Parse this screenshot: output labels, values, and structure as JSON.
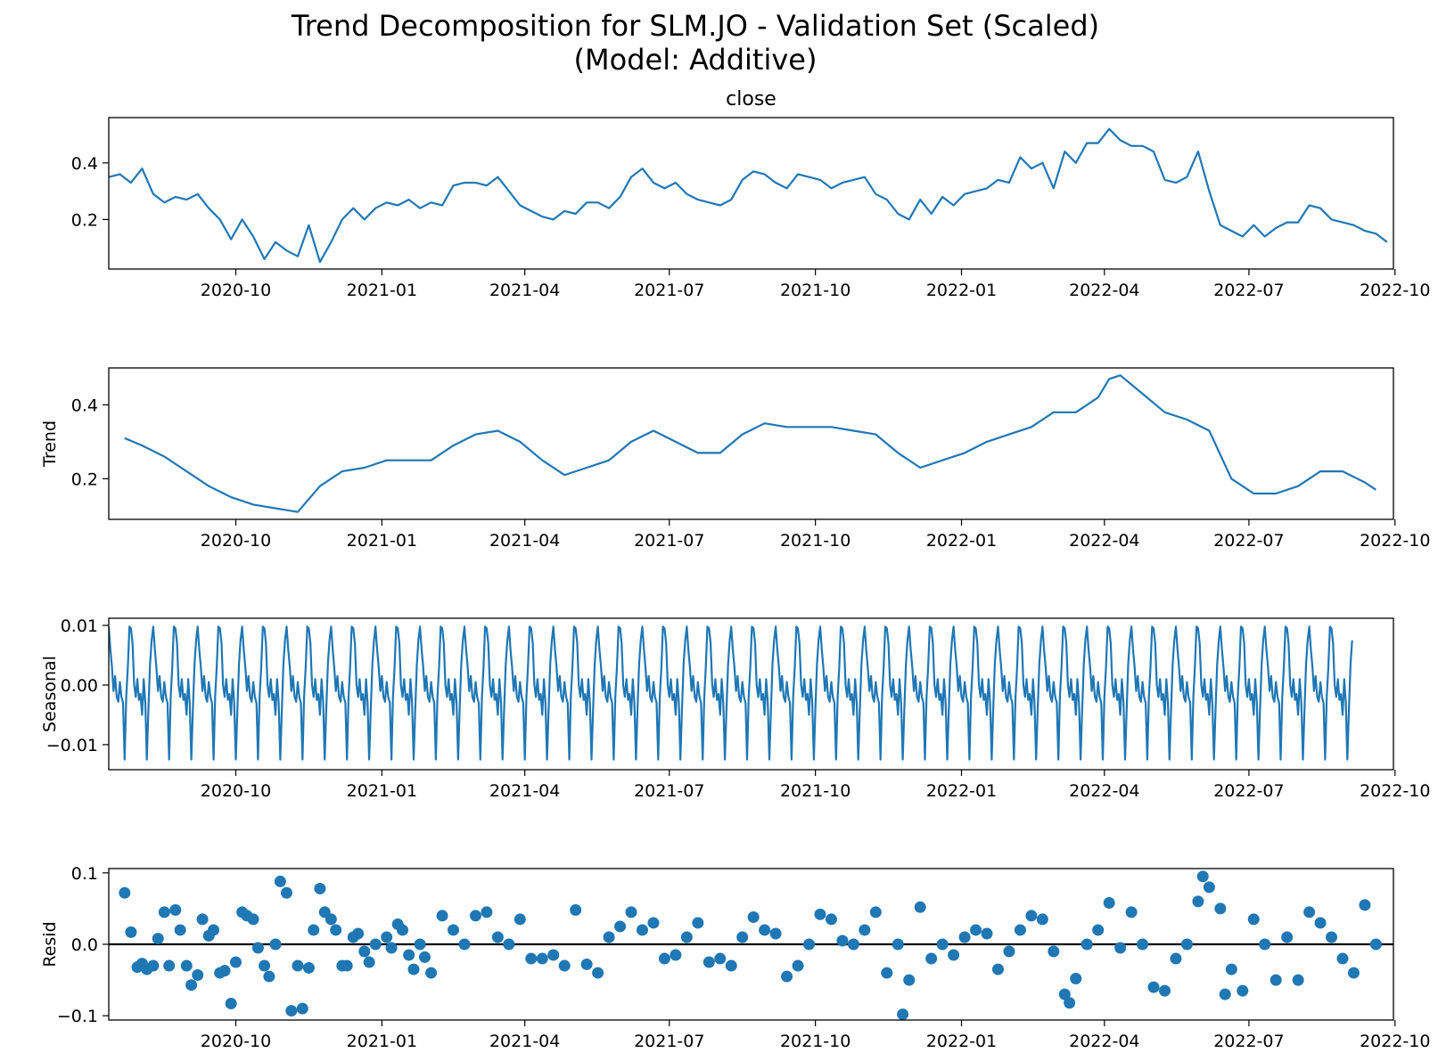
{
  "title_line1": "Trend Decomposition for SLM.JO - Validation Set (Scaled)",
  "title_line2": "(Model: Additive)",
  "x_tick_labels": [
    "2020-10",
    "2021-01",
    "2021-04",
    "2021-07",
    "2021-10",
    "2022-01",
    "2022-04",
    "2022-07",
    "2022-10"
  ],
  "colors": {
    "series": "#1f77b4",
    "zero_line": "#000000",
    "axes": "#000000"
  },
  "chart_data": [
    {
      "type": "line",
      "title": "close",
      "ylabel": "",
      "xlim": [
        "2020-07-13",
        "2022-09-30"
      ],
      "ylim": [
        0.025,
        0.56
      ],
      "yticks": [
        {
          "v": 0.2,
          "label": "0.2"
        },
        {
          "v": 0.4,
          "label": "0.4"
        }
      ],
      "x": [
        "2020-07-13",
        "2020-07-20",
        "2020-07-27",
        "2020-08-03",
        "2020-08-10",
        "2020-08-17",
        "2020-08-24",
        "2020-08-31",
        "2020-09-07",
        "2020-09-14",
        "2020-09-21",
        "2020-09-28",
        "2020-10-05",
        "2020-10-12",
        "2020-10-19",
        "2020-10-26",
        "2020-11-02",
        "2020-11-09",
        "2020-11-16",
        "2020-11-23",
        "2020-11-30",
        "2020-12-07",
        "2020-12-14",
        "2020-12-21",
        "2020-12-28",
        "2021-01-04",
        "2021-01-11",
        "2021-01-18",
        "2021-01-25",
        "2021-02-01",
        "2021-02-08",
        "2021-02-15",
        "2021-02-22",
        "2021-03-01",
        "2021-03-08",
        "2021-03-15",
        "2021-03-22",
        "2021-03-29",
        "2021-04-05",
        "2021-04-12",
        "2021-04-19",
        "2021-04-26",
        "2021-05-03",
        "2021-05-10",
        "2021-05-17",
        "2021-05-24",
        "2021-05-31",
        "2021-06-07",
        "2021-06-14",
        "2021-06-21",
        "2021-06-28",
        "2021-07-05",
        "2021-07-12",
        "2021-07-19",
        "2021-07-26",
        "2021-08-02",
        "2021-08-09",
        "2021-08-16",
        "2021-08-23",
        "2021-08-30",
        "2021-09-06",
        "2021-09-13",
        "2021-09-20",
        "2021-09-27",
        "2021-10-04",
        "2021-10-11",
        "2021-10-18",
        "2021-10-25",
        "2021-11-01",
        "2021-11-08",
        "2021-11-15",
        "2021-11-22",
        "2021-11-29",
        "2021-12-06",
        "2021-12-13",
        "2021-12-20",
        "2021-12-27",
        "2022-01-03",
        "2022-01-10",
        "2022-01-17",
        "2022-01-24",
        "2022-01-31",
        "2022-02-07",
        "2022-02-14",
        "2022-02-21",
        "2022-02-28",
        "2022-03-07",
        "2022-03-14",
        "2022-03-21",
        "2022-03-28",
        "2022-04-04",
        "2022-04-11",
        "2022-04-18",
        "2022-04-25",
        "2022-05-02",
        "2022-05-09",
        "2022-05-16",
        "2022-05-23",
        "2022-05-30",
        "2022-06-06",
        "2022-06-13",
        "2022-06-20",
        "2022-06-27",
        "2022-07-04",
        "2022-07-11",
        "2022-07-18",
        "2022-07-25",
        "2022-08-01",
        "2022-08-08",
        "2022-08-15",
        "2022-08-22",
        "2022-08-29",
        "2022-09-05",
        "2022-09-12",
        "2022-09-19",
        "2022-09-26"
      ],
      "series": [
        {
          "values": [
            0.35,
            0.36,
            0.33,
            0.38,
            0.29,
            0.26,
            0.28,
            0.27,
            0.29,
            0.24,
            0.2,
            0.13,
            0.2,
            0.14,
            0.06,
            0.12,
            0.09,
            0.07,
            0.18,
            0.05,
            0.12,
            0.2,
            0.24,
            0.2,
            0.24,
            0.26,
            0.25,
            0.27,
            0.24,
            0.26,
            0.25,
            0.32,
            0.33,
            0.33,
            0.32,
            0.35,
            0.3,
            0.25,
            0.23,
            0.21,
            0.2,
            0.23,
            0.22,
            0.26,
            0.26,
            0.24,
            0.28,
            0.35,
            0.38,
            0.33,
            0.31,
            0.33,
            0.29,
            0.27,
            0.26,
            0.25,
            0.27,
            0.34,
            0.37,
            0.36,
            0.33,
            0.31,
            0.36,
            0.35,
            0.34,
            0.31,
            0.33,
            0.34,
            0.35,
            0.29,
            0.27,
            0.22,
            0.2,
            0.27,
            0.22,
            0.28,
            0.25,
            0.29,
            0.3,
            0.31,
            0.34,
            0.33,
            0.42,
            0.38,
            0.4,
            0.31,
            0.44,
            0.4,
            0.47,
            0.47,
            0.52,
            0.48,
            0.46,
            0.46,
            0.44,
            0.34,
            0.33,
            0.35,
            0.44,
            0.3,
            0.18,
            0.16,
            0.14,
            0.18,
            0.14,
            0.17,
            0.19,
            0.19,
            0.25,
            0.24,
            0.2,
            0.19,
            0.18,
            0.16,
            0.15,
            0.12
          ]
        }
      ]
    },
    {
      "type": "line",
      "title": "",
      "ylabel": "Trend",
      "xlim": [
        "2020-07-13",
        "2022-09-30"
      ],
      "ylim": [
        0.09,
        0.5
      ],
      "yticks": [
        {
          "v": 0.2,
          "label": "0.2"
        },
        {
          "v": 0.4,
          "label": "0.4"
        }
      ],
      "x": [
        "2020-07-23",
        "2020-08-03",
        "2020-08-17",
        "2020-08-31",
        "2020-09-14",
        "2020-09-28",
        "2020-10-12",
        "2020-10-26",
        "2020-11-09",
        "2020-11-23",
        "2020-12-07",
        "2020-12-21",
        "2021-01-04",
        "2021-01-18",
        "2021-02-01",
        "2021-02-15",
        "2021-03-01",
        "2021-03-15",
        "2021-03-29",
        "2021-04-12",
        "2021-04-26",
        "2021-05-10",
        "2021-05-24",
        "2021-06-07",
        "2021-06-21",
        "2021-07-05",
        "2021-07-19",
        "2021-08-02",
        "2021-08-16",
        "2021-08-30",
        "2021-09-13",
        "2021-09-27",
        "2021-10-11",
        "2021-10-25",
        "2021-11-08",
        "2021-11-22",
        "2021-12-06",
        "2021-12-20",
        "2022-01-03",
        "2022-01-17",
        "2022-01-31",
        "2022-02-14",
        "2022-02-28",
        "2022-03-14",
        "2022-03-28",
        "2022-04-04",
        "2022-04-11",
        "2022-04-25",
        "2022-05-09",
        "2022-05-23",
        "2022-06-06",
        "2022-06-20",
        "2022-07-04",
        "2022-07-18",
        "2022-08-01",
        "2022-08-15",
        "2022-08-29",
        "2022-09-12",
        "2022-09-19"
      ],
      "series": [
        {
          "values": [
            0.31,
            0.29,
            0.26,
            0.22,
            0.18,
            0.15,
            0.13,
            0.12,
            0.11,
            0.18,
            0.22,
            0.23,
            0.25,
            0.25,
            0.25,
            0.29,
            0.32,
            0.33,
            0.3,
            0.25,
            0.21,
            0.23,
            0.25,
            0.3,
            0.33,
            0.3,
            0.27,
            0.27,
            0.32,
            0.35,
            0.34,
            0.34,
            0.34,
            0.33,
            0.32,
            0.27,
            0.23,
            0.25,
            0.27,
            0.3,
            0.32,
            0.34,
            0.38,
            0.38,
            0.42,
            0.47,
            0.48,
            0.43,
            0.38,
            0.36,
            0.33,
            0.2,
            0.16,
            0.16,
            0.18,
            0.22,
            0.22,
            0.19,
            0.17
          ]
        }
      ]
    },
    {
      "type": "line",
      "title": "",
      "ylabel": "Seasonal",
      "xlim": [
        "2020-07-13",
        "2022-09-30"
      ],
      "ylim": [
        -0.0142,
        0.0112
      ],
      "yticks": [
        {
          "v": 0.01,
          "label": "0.01"
        },
        {
          "v": 0.0,
          "label": "0.00"
        },
        {
          "v": -0.01,
          "label": "−0.01"
        }
      ],
      "x_start": "2020-07-13",
      "period_days": 28,
      "num_periods": 28,
      "series": [
        {
          "name": "",
          "values_per_period": [
            0.0098,
            0.006,
            0.003,
            -0.001,
            0.0015,
            -0.002,
            -0.0028,
            0.0005,
            -0.002,
            -0.003,
            -0.0125,
            -0.002,
            0.003,
            0.0098,
            0.0095,
            0.007,
            0.0,
            -0.002,
            0.001,
            -0.0025,
            -0.0015,
            -0.005,
            0.001,
            -0.003,
            -0.0125,
            -0.004,
            0.0035,
            0.0075
          ]
        }
      ]
    },
    {
      "type": "scatter",
      "title": "",
      "ylabel": "Resid",
      "xlim": [
        "2020-07-13",
        "2022-09-30"
      ],
      "ylim": [
        -0.106,
        0.106
      ],
      "yticks": [
        {
          "v": 0.1,
          "label": "0.1"
        },
        {
          "v": 0.0,
          "label": "0.0"
        },
        {
          "v": -0.1,
          "label": "−0.1"
        }
      ],
      "zero_line": true,
      "x": [
        "2020-07-23",
        "2020-07-27",
        "2020-07-31",
        "2020-08-03",
        "2020-08-06",
        "2020-08-10",
        "2020-08-13",
        "2020-08-17",
        "2020-08-20",
        "2020-08-24",
        "2020-08-27",
        "2020-08-31",
        "2020-09-03",
        "2020-09-07",
        "2020-09-10",
        "2020-09-14",
        "2020-09-17",
        "2020-09-21",
        "2020-09-24",
        "2020-09-28",
        "2020-10-01",
        "2020-10-05",
        "2020-10-08",
        "2020-10-12",
        "2020-10-15",
        "2020-10-19",
        "2020-10-22",
        "2020-10-26",
        "2020-10-29",
        "2020-11-02",
        "2020-11-05",
        "2020-11-09",
        "2020-11-12",
        "2020-11-16",
        "2020-11-19",
        "2020-11-23",
        "2020-11-26",
        "2020-11-30",
        "2020-12-03",
        "2020-12-07",
        "2020-12-10",
        "2020-12-14",
        "2020-12-17",
        "2020-12-21",
        "2020-12-24",
        "2020-12-28",
        "2021-01-04",
        "2021-01-07",
        "2021-01-11",
        "2021-01-14",
        "2021-01-18",
        "2021-01-21",
        "2021-01-25",
        "2021-01-28",
        "2021-02-01",
        "2021-02-08",
        "2021-02-15",
        "2021-02-22",
        "2021-03-01",
        "2021-03-08",
        "2021-03-15",
        "2021-03-22",
        "2021-03-29",
        "2021-04-05",
        "2021-04-12",
        "2021-04-19",
        "2021-04-26",
        "2021-05-03",
        "2021-05-10",
        "2021-05-17",
        "2021-05-24",
        "2021-05-31",
        "2021-06-07",
        "2021-06-14",
        "2021-06-21",
        "2021-06-28",
        "2021-07-05",
        "2021-07-12",
        "2021-07-19",
        "2021-07-26",
        "2021-08-02",
        "2021-08-09",
        "2021-08-16",
        "2021-08-23",
        "2021-08-30",
        "2021-09-06",
        "2021-09-13",
        "2021-09-20",
        "2021-09-27",
        "2021-10-04",
        "2021-10-11",
        "2021-10-18",
        "2021-10-25",
        "2021-11-01",
        "2021-11-08",
        "2021-11-15",
        "2021-11-22",
        "2021-11-25",
        "2021-11-29",
        "2021-12-06",
        "2021-12-13",
        "2021-12-20",
        "2021-12-27",
        "2022-01-03",
        "2022-01-10",
        "2022-01-17",
        "2022-01-24",
        "2022-01-31",
        "2022-02-07",
        "2022-02-14",
        "2022-02-21",
        "2022-02-28",
        "2022-03-07",
        "2022-03-10",
        "2022-03-14",
        "2022-03-21",
        "2022-03-28",
        "2022-04-04",
        "2022-04-11",
        "2022-04-18",
        "2022-04-25",
        "2022-05-02",
        "2022-05-09",
        "2022-05-16",
        "2022-05-23",
        "2022-05-30",
        "2022-06-02",
        "2022-06-06",
        "2022-06-13",
        "2022-06-16",
        "2022-06-20",
        "2022-06-27",
        "2022-07-04",
        "2022-07-11",
        "2022-07-18",
        "2022-07-25",
        "2022-08-01",
        "2022-08-08",
        "2022-08-15",
        "2022-08-22",
        "2022-08-29",
        "2022-09-05",
        "2022-09-12",
        "2022-09-19"
      ],
      "series": [
        {
          "values": [
            0.072,
            0.017,
            -0.032,
            -0.027,
            -0.035,
            -0.03,
            0.008,
            0.045,
            -0.03,
            0.048,
            0.02,
            -0.03,
            -0.057,
            -0.043,
            0.035,
            0.012,
            0.02,
            -0.04,
            -0.037,
            -0.083,
            -0.025,
            0.045,
            0.04,
            0.035,
            -0.005,
            -0.03,
            -0.045,
            0.0,
            0.088,
            0.072,
            -0.093,
            -0.03,
            -0.09,
            -0.033,
            0.02,
            0.078,
            0.045,
            0.035,
            0.02,
            -0.03,
            -0.03,
            0.01,
            0.015,
            -0.01,
            -0.025,
            0.0,
            0.01,
            -0.005,
            0.028,
            0.02,
            -0.015,
            -0.035,
            0.0,
            -0.018,
            -0.04,
            0.04,
            0.02,
            0.0,
            0.04,
            0.045,
            0.01,
            0.0,
            0.035,
            -0.02,
            -0.02,
            -0.015,
            -0.03,
            0.048,
            -0.028,
            -0.04,
            0.01,
            0.025,
            0.045,
            0.02,
            0.03,
            -0.02,
            -0.015,
            0.01,
            0.03,
            -0.025,
            -0.02,
            -0.03,
            0.01,
            0.038,
            0.02,
            0.015,
            -0.045,
            -0.03,
            0.0,
            0.042,
            0.035,
            0.005,
            0.0,
            0.02,
            0.045,
            -0.04,
            0.0,
            -0.098,
            -0.05,
            0.052,
            -0.02,
            0.0,
            -0.015,
            0.01,
            0.02,
            0.015,
            -0.035,
            -0.01,
            0.02,
            0.04,
            0.035,
            -0.01,
            -0.07,
            -0.082,
            -0.048,
            0.0,
            0.02,
            0.058,
            -0.005,
            0.045,
            0.0,
            -0.06,
            -0.065,
            -0.02,
            0.0,
            0.06,
            0.095,
            0.08,
            0.05,
            -0.07,
            -0.035,
            -0.065,
            0.035,
            0.0,
            -0.05,
            0.01,
            -0.05,
            0.045,
            0.03,
            0.01,
            -0.02,
            -0.04,
            0.055,
            0.0
          ]
        }
      ]
    }
  ]
}
